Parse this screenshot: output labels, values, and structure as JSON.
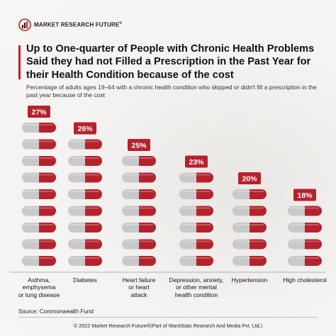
{
  "brand": {
    "name": "MARKET RESEARCH FUTURE",
    "reg": "®",
    "accent": "#c0202b"
  },
  "header": {
    "title": "Up to One-quarter of People with Chronic Health Problems Said they had not Filled a Prescription in the Past Year for their Health Condition because of the cost",
    "subtitle": "Percentage of adults ages 19–64 with a chronic health condition who skipped or didn't fill a prescription in the past year because of the cost"
  },
  "chart_data": {
    "type": "bar",
    "categories": [
      "Asthma, emphysema or lung disease",
      "Diabetes",
      "Heart failure or heart attack",
      "Depression, anxiety, or other mental health condition",
      "Hypertension",
      "High cholesterol"
    ],
    "category_lines": [
      [
        "Asthma,",
        "emphysema",
        "or lung disease"
      ],
      [
        "Diabetes"
      ],
      [
        "Heart failure",
        "or heart",
        "attack"
      ],
      [
        "Depression, anxiety,",
        "or other mental",
        "health condition"
      ],
      [
        "Hypertension"
      ],
      [
        "High cholesterol"
      ]
    ],
    "values": [
      27,
      26,
      25,
      23,
      20,
      18
    ],
    "data_labels": [
      "27%",
      "26%",
      "25%",
      "23%",
      "20%",
      "18%"
    ],
    "pill_counts": [
      9,
      8,
      7,
      6,
      5,
      4
    ],
    "unit": "%",
    "colors": {
      "pill_left": "#c9c9c9",
      "pill_right": "#b5222d",
      "label_bg": "#b5222d",
      "label_text": "#ffffff"
    }
  },
  "footer": {
    "source": "Source: Commonwealth Fund",
    "copyright": "© 2022 Market Research Future®(Part of WantStats Research And Media Pvt. Ltd.)"
  }
}
